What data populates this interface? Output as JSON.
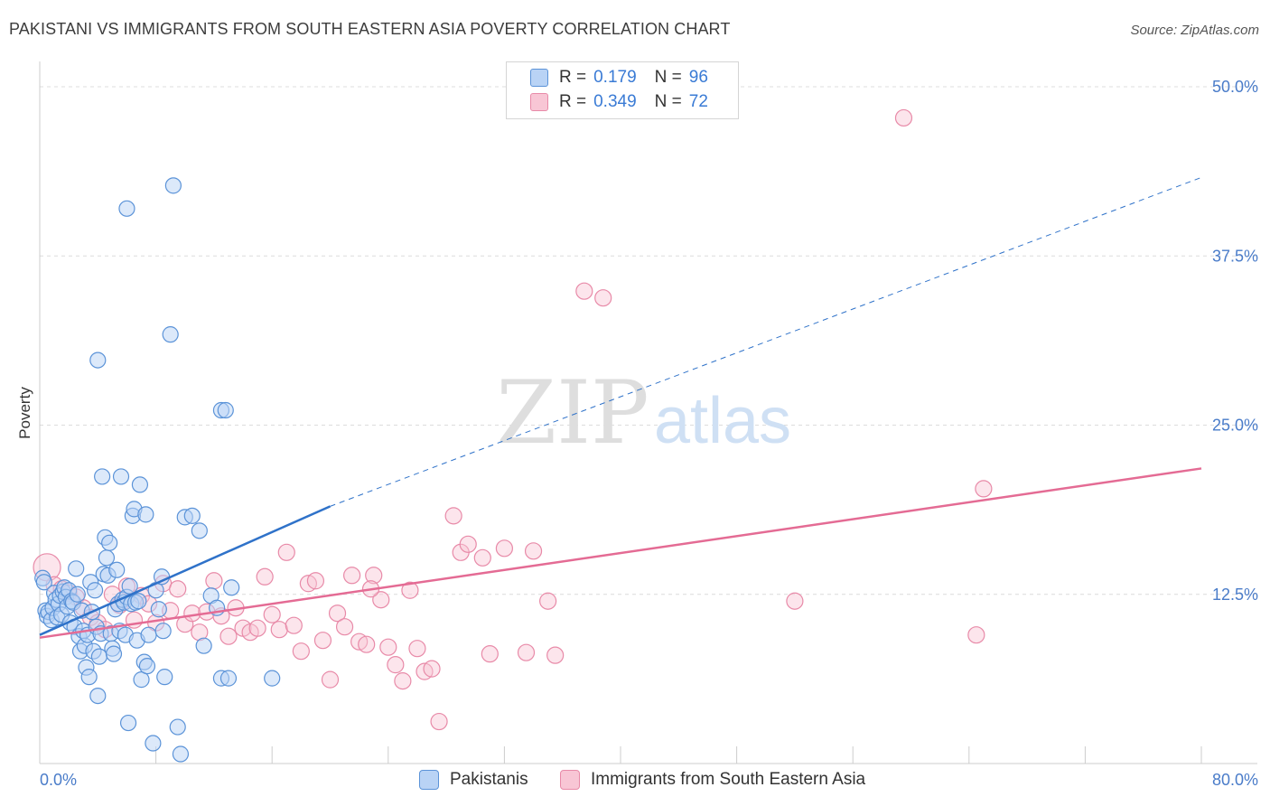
{
  "header": {
    "title": "PAKISTANI VS IMMIGRANTS FROM SOUTH EASTERN ASIA POVERTY CORRELATION CHART",
    "source": "Source: ZipAtlas.com"
  },
  "legend": {
    "rows": [
      {
        "r_label": "R =",
        "r_value": "0.179",
        "n_label": "N =",
        "n_value": "96"
      },
      {
        "r_label": "R =",
        "r_value": "0.349",
        "n_label": "N =",
        "n_value": "72"
      }
    ]
  },
  "bottom_legend": {
    "items": [
      {
        "label": "Pakistanis"
      },
      {
        "label": "Immigrants from South Eastern Asia"
      }
    ]
  },
  "watermark": {
    "zip": "ZIP",
    "atlas": "atlas"
  },
  "colors": {
    "blue_fill": "#b9d3f5",
    "blue_stroke": "#5b93d8",
    "blue_line": "#2f72c9",
    "pink_fill": "#f8c6d5",
    "pink_stroke": "#e88aa8",
    "pink_line": "#e46b94",
    "tick_label": "#4a7cc9",
    "grid": "#dcdcdc"
  },
  "chart_data": {
    "type": "scatter",
    "title": "PAKISTANI VS IMMIGRANTS FROM SOUTH EASTERN ASIA POVERTY CORRELATION CHART",
    "xlabel": "",
    "ylabel": "Poverty",
    "xlim": [
      0,
      80
    ],
    "ylim": [
      0,
      50
    ],
    "x_tick_labels": [
      "0.0%",
      "80.0%"
    ],
    "y_ticks": [
      12.5,
      25.0,
      37.5,
      50.0
    ],
    "y_tick_labels": [
      "12.5%",
      "25.0%",
      "37.5%",
      "50.0%"
    ],
    "grid": true,
    "legend_position": "top-center",
    "series": [
      {
        "name": "Pakistanis",
        "color": "#5b93d8",
        "trend": {
          "x0": 0,
          "y0": 9.5,
          "x1": 20,
          "y1": 19.0,
          "dashed_to_x": 80,
          "dashed_to_y": 43.3
        },
        "points": [
          [
            0.2,
            13.7
          ],
          [
            0.3,
            13.4
          ],
          [
            0.4,
            11.3
          ],
          [
            0.5,
            10.9
          ],
          [
            0.6,
            11.2
          ],
          [
            0.8,
            10.6
          ],
          [
            0.9,
            11.5
          ],
          [
            1.0,
            12.6
          ],
          [
            1.1,
            12.1
          ],
          [
            1.2,
            10.8
          ],
          [
            1.3,
            11.8
          ],
          [
            1.4,
            12.4
          ],
          [
            1.5,
            11.0
          ],
          [
            1.6,
            12.7
          ],
          [
            1.7,
            13.0
          ],
          [
            1.8,
            12.3
          ],
          [
            1.9,
            11.6
          ],
          [
            2.0,
            12.8
          ],
          [
            2.1,
            10.4
          ],
          [
            2.2,
            12.0
          ],
          [
            2.3,
            11.9
          ],
          [
            2.4,
            10.1
          ],
          [
            2.5,
            14.4
          ],
          [
            2.6,
            12.5
          ],
          [
            2.7,
            9.4
          ],
          [
            2.8,
            8.3
          ],
          [
            2.9,
            11.3
          ],
          [
            3.0,
            9.8
          ],
          [
            3.1,
            8.7
          ],
          [
            3.2,
            7.1
          ],
          [
            3.3,
            9.5
          ],
          [
            3.4,
            6.4
          ],
          [
            3.5,
            13.4
          ],
          [
            3.6,
            11.2
          ],
          [
            3.7,
            8.3
          ],
          [
            3.8,
            12.8
          ],
          [
            3.9,
            10.1
          ],
          [
            4.0,
            5.0
          ],
          [
            4.1,
            7.9
          ],
          [
            4.2,
            9.6
          ],
          [
            4.3,
            21.2
          ],
          [
            4.4,
            14.0
          ],
          [
            4.5,
            16.7
          ],
          [
            4.6,
            15.2
          ],
          [
            4.7,
            13.9
          ],
          [
            4.8,
            16.3
          ],
          [
            4.9,
            9.6
          ],
          [
            5.0,
            8.5
          ],
          [
            5.1,
            8.1
          ],
          [
            5.2,
            11.4
          ],
          [
            5.3,
            14.3
          ],
          [
            5.4,
            11.8
          ],
          [
            5.5,
            9.8
          ],
          [
            5.6,
            21.2
          ],
          [
            5.7,
            12.1
          ],
          [
            5.8,
            11.9
          ],
          [
            5.9,
            9.5
          ],
          [
            6.0,
            12.3
          ],
          [
            6.1,
            3.0
          ],
          [
            6.2,
            13.1
          ],
          [
            6.3,
            11.8
          ],
          [
            6.4,
            18.3
          ],
          [
            6.5,
            18.8
          ],
          [
            6.6,
            11.9
          ],
          [
            6.7,
            9.1
          ],
          [
            6.8,
            12.0
          ],
          [
            6.9,
            20.6
          ],
          [
            7.0,
            6.2
          ],
          [
            7.2,
            7.5
          ],
          [
            7.3,
            18.4
          ],
          [
            7.4,
            7.2
          ],
          [
            7.5,
            9.5
          ],
          [
            7.8,
            1.5
          ],
          [
            8.0,
            12.8
          ],
          [
            8.2,
            11.4
          ],
          [
            8.4,
            13.8
          ],
          [
            8.5,
            9.8
          ],
          [
            8.6,
            6.4
          ],
          [
            9.0,
            31.7
          ],
          [
            9.2,
            42.7
          ],
          [
            9.5,
            2.7
          ],
          [
            9.7,
            0.7
          ],
          [
            10.0,
            18.2
          ],
          [
            10.5,
            18.3
          ],
          [
            11.0,
            17.2
          ],
          [
            11.3,
            8.7
          ],
          [
            11.8,
            12.4
          ],
          [
            12.2,
            11.5
          ],
          [
            12.5,
            26.1
          ],
          [
            12.8,
            26.1
          ],
          [
            13.2,
            13.0
          ],
          [
            6.0,
            41.0
          ],
          [
            4.0,
            29.8
          ],
          [
            12.5,
            6.3
          ],
          [
            13.0,
            6.3
          ],
          [
            16.0,
            6.3
          ]
        ]
      },
      {
        "name": "Immigrants from South Eastern Asia",
        "color": "#e88aa8",
        "trend": {
          "x0": 0,
          "y0": 9.3,
          "x1": 80,
          "y1": 21.8
        },
        "points": [
          [
            0.5,
            14.5
          ],
          [
            1.0,
            13.2
          ],
          [
            1.5,
            12.9
          ],
          [
            2.0,
            12.6
          ],
          [
            2.5,
            12.3
          ],
          [
            3.0,
            11.5
          ],
          [
            3.5,
            10.8
          ],
          [
            4.0,
            10.4
          ],
          [
            4.5,
            9.9
          ],
          [
            5.0,
            12.5
          ],
          [
            5.5,
            11.7
          ],
          [
            6.0,
            13.1
          ],
          [
            6.5,
            10.6
          ],
          [
            7.0,
            12.4
          ],
          [
            7.5,
            11.8
          ],
          [
            8.0,
            10.4
          ],
          [
            8.5,
            13.3
          ],
          [
            9.0,
            11.3
          ],
          [
            9.5,
            12.9
          ],
          [
            10.0,
            10.3
          ],
          [
            10.5,
            11.1
          ],
          [
            11.0,
            9.7
          ],
          [
            11.5,
            11.2
          ],
          [
            12.0,
            13.5
          ],
          [
            12.5,
            10.9
          ],
          [
            13.0,
            9.4
          ],
          [
            13.5,
            11.5
          ],
          [
            14.0,
            10.0
          ],
          [
            14.5,
            9.7
          ],
          [
            15.0,
            10.0
          ],
          [
            15.5,
            13.8
          ],
          [
            16.0,
            11.0
          ],
          [
            16.5,
            9.9
          ],
          [
            17.0,
            15.6
          ],
          [
            17.5,
            10.2
          ],
          [
            18.0,
            8.3
          ],
          [
            18.5,
            13.3
          ],
          [
            19.0,
            13.5
          ],
          [
            19.5,
            9.1
          ],
          [
            20.0,
            6.2
          ],
          [
            20.5,
            11.1
          ],
          [
            21.0,
            10.1
          ],
          [
            21.5,
            13.9
          ],
          [
            22.0,
            9.0
          ],
          [
            22.5,
            8.8
          ],
          [
            23.0,
            13.9
          ],
          [
            23.5,
            12.1
          ],
          [
            24.0,
            8.6
          ],
          [
            24.5,
            7.3
          ],
          [
            25.0,
            6.1
          ],
          [
            25.5,
            12.8
          ],
          [
            26.0,
            8.5
          ],
          [
            26.5,
            6.8
          ],
          [
            27.0,
            7.0
          ],
          [
            27.5,
            3.1
          ],
          [
            28.5,
            18.3
          ],
          [
            29.0,
            15.6
          ],
          [
            29.5,
            16.2
          ],
          [
            30.5,
            15.2
          ],
          [
            31.0,
            8.1
          ],
          [
            32.0,
            15.9
          ],
          [
            33.5,
            8.2
          ],
          [
            34.0,
            15.7
          ],
          [
            35.0,
            12.0
          ],
          [
            35.5,
            8.0
          ],
          [
            37.5,
            34.9
          ],
          [
            38.8,
            34.4
          ],
          [
            52.0,
            12.0
          ],
          [
            64.5,
            9.5
          ],
          [
            65.0,
            20.3
          ],
          [
            59.5,
            47.7
          ],
          [
            22.8,
            12.9
          ]
        ]
      }
    ]
  }
}
